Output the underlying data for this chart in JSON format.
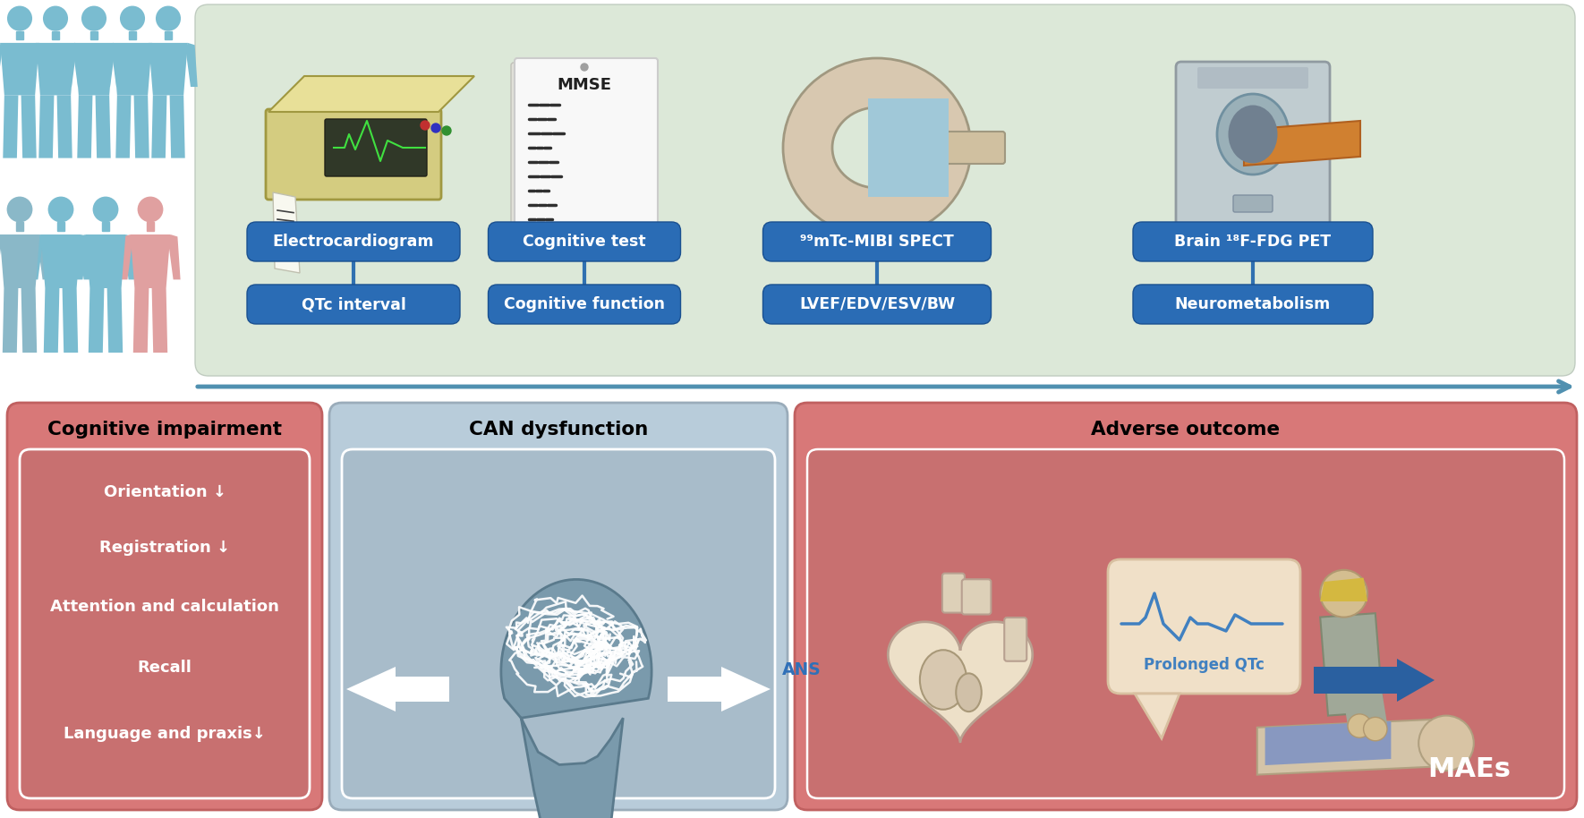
{
  "bg_color": "#ffffff",
  "top_panel_bg": "#dce8d8",
  "top_panel_edge": "#c0ccc0",
  "separator_color": "#5090b0",
  "blue_box_color": "#2a6cb5",
  "blue_box_edge": "#1a5090",
  "left_panel_bg": "#d87878",
  "left_panel_edge": "#c06060",
  "left_inner_bg": "#c87070",
  "mid_panel_bg": "#b8ccda",
  "mid_panel_edge": "#9aacba",
  "mid_inner_bg": "#a8bcca",
  "right_panel_bg": "#d87878",
  "right_panel_edge": "#c06060",
  "right_inner_bg": "#c87070",
  "head_color": "#7a9aac",
  "head_edge": "#5a7a8c",
  "qtc_box_bg": "#f0e0c8",
  "qtc_box_edge": "#d8c0a0",
  "qtc_line_color": "#4080c0",
  "arrow_blue": "#2a60a0",
  "ans_color": "#3070b8",
  "maes_color": "#ffffff",
  "white": "#ffffff",
  "person_skin": "#d4b896",
  "person_skin2": "#c8a878",
  "person_shirt": "#9aaa98",
  "patient_shirt": "#8898b0",
  "human_blue": "#7abcd0",
  "human_pink": "#e0a0a0",
  "cognitive_items": [
    "Orientation ↓",
    "Registration ↓",
    "Attention and calculation",
    "Recall",
    "Language and praxis↓"
  ],
  "top_labels_row1": [
    "Electrocardiogram",
    "Cognitive test",
    "⁹⁹mTc-MIBI SPECT",
    "Brain ¹⁸F-FDG PET"
  ],
  "top_labels_row2": [
    "QTc interval",
    "Cognitive function",
    "LVEF/EDV/ESV/BW",
    "Neurometabolism"
  ],
  "panel_titles": [
    "Cognitive impairment",
    "CAN dysfunction",
    "Adverse outcome"
  ]
}
